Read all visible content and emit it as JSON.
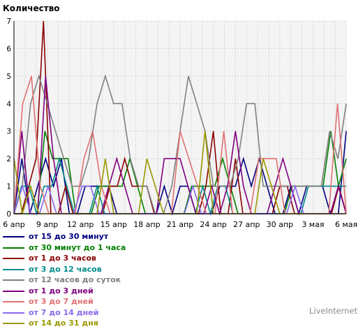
{
  "chart_data": {
    "type": "line",
    "ylabel": "Количество",
    "ylim": [
      0,
      7
    ],
    "y_ticks": [
      0,
      1,
      2,
      3,
      4,
      5,
      6,
      7
    ],
    "x_count": 31,
    "x_tick_labels": [
      "6 апр",
      "9 апр",
      "12 апр",
      "15 апр",
      "18 апр",
      "21 апр",
      "24 апр",
      "27 апр",
      "30 апр",
      "3 мая",
      "6 мая"
    ],
    "grid": true,
    "legend_position": "bottom",
    "series": [
      {
        "name": "от 15 до 30 минут",
        "color": "#000080",
        "values": [
          0,
          2,
          0,
          1,
          2,
          1,
          2,
          0,
          0,
          1,
          1,
          1,
          1,
          0,
          0,
          0,
          0,
          0,
          0,
          1,
          0,
          1,
          1,
          0,
          0,
          0,
          1,
          1,
          1,
          2,
          1,
          2,
          1,
          0,
          0,
          1,
          0,
          1,
          1,
          1,
          0,
          0,
          3
        ]
      },
      {
        "name": "от 30 минут до 1 часа",
        "color": "#008000",
        "values": [
          0,
          0,
          0,
          0,
          3,
          2,
          2,
          2,
          0,
          0,
          0,
          1,
          1,
          1,
          1,
          2,
          1,
          0,
          0,
          0,
          0,
          0,
          0,
          1,
          1,
          1,
          1,
          2,
          1,
          0,
          0,
          0,
          0,
          0,
          0,
          0,
          1,
          1,
          1,
          1,
          1,
          3,
          1,
          2
        ]
      },
      {
        "name": "от 1 до 3 часов",
        "color": "#8b0000",
        "values": [
          0,
          0,
          1,
          2,
          7,
          0,
          0,
          1,
          0,
          0,
          0,
          0,
          0,
          1,
          1,
          2,
          1,
          1,
          1,
          0,
          0,
          0,
          0,
          0,
          0,
          0,
          1,
          3,
          0,
          0,
          2,
          0,
          0,
          0,
          0,
          0,
          1,
          1,
          0,
          0,
          0,
          0,
          0,
          0,
          1,
          0
        ]
      },
      {
        "name": "от 3 до 12 часов",
        "color": "#008b8b",
        "values": [
          0,
          1,
          1,
          0,
          1,
          1,
          2,
          1,
          0,
          0,
          0,
          1,
          0,
          0,
          0,
          0,
          0,
          0,
          0,
          0,
          0,
          0,
          0,
          0,
          0,
          1,
          0,
          1,
          1,
          0,
          0,
          0,
          0,
          0,
          0,
          0,
          0,
          0,
          0,
          1,
          1,
          1,
          1,
          1,
          1
        ]
      },
      {
        "name": "от 12 часов до суток",
        "color": "#808080",
        "values": [
          0,
          1,
          4,
          5,
          4,
          3,
          2,
          1,
          1,
          2,
          4,
          5,
          4,
          4,
          2,
          1,
          1,
          0,
          0,
          1,
          3,
          5,
          4,
          3,
          1,
          1,
          1,
          2,
          4,
          4,
          1,
          1,
          1,
          1,
          1,
          1,
          1,
          1,
          3,
          2,
          4
        ]
      },
      {
        "name": "от 1 до 3 дней",
        "color": "#800080",
        "values": [
          0,
          3,
          0,
          0,
          5,
          2,
          0,
          0,
          0,
          0,
          0,
          0,
          1,
          2,
          1,
          0,
          0,
          0,
          0,
          2,
          2,
          2,
          1,
          0,
          0,
          1,
          0,
          1,
          3,
          1,
          0,
          0,
          0,
          1,
          2,
          1,
          0,
          0,
          0,
          0,
          0,
          1,
          0
        ]
      },
      {
        "name": "от 3 до 7 дней",
        "color": "#e07070",
        "values": [
          0,
          4,
          5,
          1,
          0,
          0,
          0,
          0,
          2,
          3,
          1,
          0,
          0,
          0,
          0,
          0,
          0,
          0,
          0,
          3,
          2,
          1,
          0,
          0,
          3,
          0,
          0,
          0,
          2,
          2,
          2,
          0,
          0,
          0,
          0,
          0,
          0,
          4,
          0
        ]
      },
      {
        "name": "от 7 до 14 дней",
        "color": "#8a6aee",
        "values": [
          0,
          1,
          0,
          0,
          1,
          0,
          0,
          0,
          1,
          1,
          0,
          0,
          0,
          0,
          0,
          0,
          0,
          0,
          0,
          0,
          0,
          1,
          0,
          0,
          0,
          0,
          0,
          0,
          0,
          0,
          0,
          0,
          0,
          1,
          0,
          0,
          0,
          0,
          0,
          0
        ]
      },
      {
        "name": "от 14 до 31 дня",
        "color": "#999900",
        "values": [
          2,
          0,
          1,
          0,
          0,
          0,
          0,
          0,
          0,
          0,
          0,
          2,
          0,
          0,
          0,
          0,
          2,
          1,
          0,
          0,
          0,
          0,
          0,
          3,
          0,
          0,
          0,
          0,
          0,
          0,
          2,
          1,
          0,
          0,
          0,
          0,
          0,
          0,
          0,
          0,
          0
        ]
      }
    ]
  },
  "footer": {
    "brand": "LiveInternet"
  }
}
